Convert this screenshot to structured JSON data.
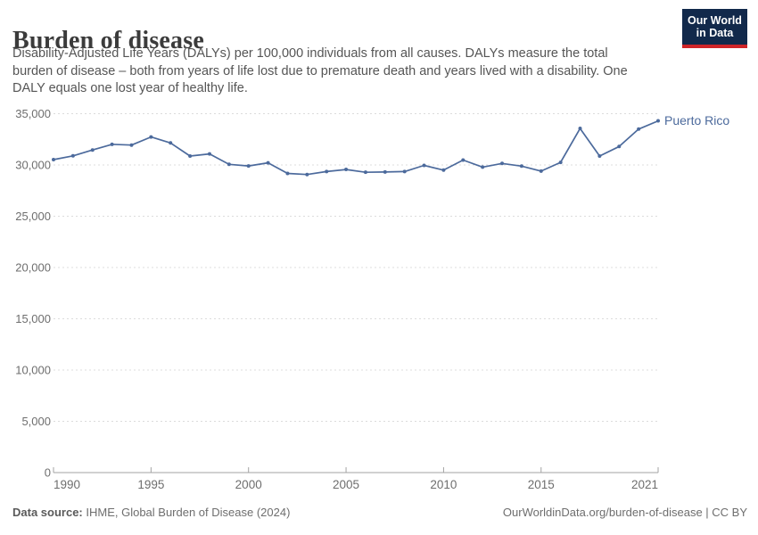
{
  "header": {
    "title": "Burden of disease",
    "subtitle_lines": [
      "Disability-Adjusted Life Years (DALYs) per 100,000 individuals from all causes. DALYs measure the total",
      "burden of disease – both from years of life lost due to premature death and years lived with a disability. One",
      "DALY equals one lost year of healthy life."
    ],
    "logo": {
      "line1": "Our World",
      "line2": "in Data",
      "bg_color": "#12294b",
      "bar_color": "#cf2428"
    }
  },
  "chart_data": {
    "type": "line",
    "title": "Burden of disease",
    "entity_label": "Puerto Rico",
    "line_color": "#4C6A9C",
    "grid": "horizontal-dashed",
    "legend_position": "end-of-line-label",
    "xlabel": "",
    "ylabel": "",
    "ylim": [
      0,
      35000
    ],
    "yticks": [
      0,
      5000,
      10000,
      15000,
      20000,
      25000,
      30000,
      35000
    ],
    "ytick_labels": [
      "0",
      "5,000",
      "10,000",
      "15,000",
      "20,000",
      "25,000",
      "30,000",
      "35,000"
    ],
    "xticks": [
      1990,
      1995,
      2000,
      2005,
      2010,
      2015,
      2021
    ],
    "xtick_labels": [
      "1990",
      "1995",
      "2000",
      "2005",
      "2010",
      "2015",
      "2021"
    ],
    "series": [
      {
        "name": "Puerto Rico",
        "x": [
          1990,
          1991,
          1992,
          1993,
          1994,
          1995,
          1996,
          1997,
          1998,
          1999,
          2000,
          2001,
          2002,
          2003,
          2004,
          2005,
          2006,
          2007,
          2008,
          2009,
          2010,
          2011,
          2012,
          2013,
          2014,
          2015,
          2016,
          2017,
          2018,
          2019,
          2020,
          2021
        ],
        "values": [
          30520,
          30890,
          31460,
          32010,
          31940,
          32730,
          32150,
          30870,
          31080,
          30060,
          29900,
          30210,
          29170,
          29070,
          29360,
          29560,
          29290,
          29310,
          29360,
          29960,
          29500,
          30480,
          29790,
          30150,
          29890,
          29400,
          30250,
          33560,
          30870,
          31800,
          33500,
          34300
        ]
      }
    ]
  },
  "footer": {
    "source_label": "Data source:",
    "source_text": " IHME, Global Burden of Disease (2024)",
    "link_text": "OurWorldinData.org/burden-of-disease | CC BY"
  },
  "colors": {
    "line": "#4C6A9C",
    "gridline": "#dcdcdc",
    "axis": "#a3a3a3",
    "tick_text": "#6e6e6e",
    "title_text": "#3b3b3b",
    "subtitle_text": "#555555"
  }
}
